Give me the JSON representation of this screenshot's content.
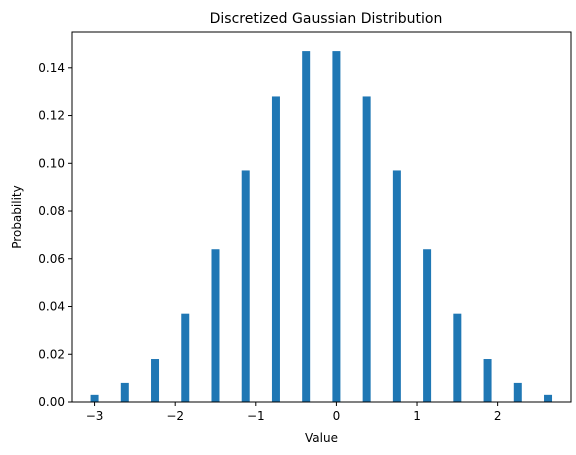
{
  "chart_data": {
    "type": "bar",
    "title": "Discretized Gaussian Distribution",
    "xlabel": "Value",
    "ylabel": "Probability",
    "x": [
      -3.0,
      -2.625,
      -2.25,
      -1.875,
      -1.5,
      -1.125,
      -0.75,
      -0.375,
      0.0,
      0.375,
      0.75,
      1.125,
      1.5,
      1.875,
      2.25,
      2.625
    ],
    "values": [
      0.003,
      0.008,
      0.018,
      0.037,
      0.064,
      0.097,
      0.128,
      0.147,
      0.147,
      0.128,
      0.097,
      0.064,
      0.037,
      0.018,
      0.008,
      0.003
    ],
    "bar_color": "#1f77b4",
    "xlim": [
      -3.28,
      2.91
    ],
    "ylim": [
      0,
      0.155
    ],
    "xticks": [
      -3,
      -2,
      -1,
      0,
      1,
      2
    ],
    "xtick_labels": [
      "−3",
      "−2",
      "−1",
      "0",
      "1",
      "2"
    ],
    "yticks": [
      0.0,
      0.02,
      0.04,
      0.06,
      0.08,
      0.1,
      0.12,
      0.14
    ],
    "ytick_labels": [
      "0.00",
      "0.02",
      "0.04",
      "0.06",
      "0.08",
      "0.10",
      "0.12",
      "0.14"
    ],
    "grid": false,
    "legend": "none"
  }
}
